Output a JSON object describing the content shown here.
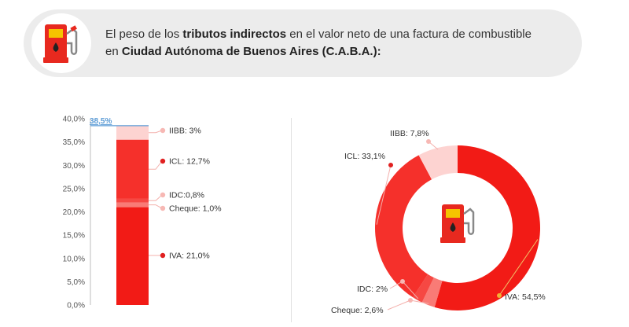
{
  "header": {
    "title_part1": "El peso de los ",
    "title_bold1": "tributos indirectos",
    "title_part2": " en el valor neto de una factura de combustible",
    "title_part3": "en ",
    "title_bold2": "Ciudad Autónoma de Buenos Aires (C.A.B.A.):",
    "icon": "fuel-pump-icon"
  },
  "colors": {
    "iva": "#f21b16",
    "cheque": "#f97b76",
    "idc": "#f64843",
    "icl": "#f5302b",
    "iibb": "#fdd3d1",
    "total_line": "#5b9bd5",
    "dot_light": "#f7b8b4",
    "dot_dark": "#e02020",
    "dot_gold": "#f2b134",
    "pump_red": "#e8291f",
    "pump_yellow": "#f5c400"
  },
  "chart_data": [
    {
      "type": "bar",
      "stacked": true,
      "categories": [
        ""
      ],
      "series": [
        {
          "name": "IVA",
          "values": [
            21.0
          ],
          "label": "IVA: 21,0%"
        },
        {
          "name": "Cheque",
          "values": [
            1.0
          ],
          "label": "Cheque: 1,0%"
        },
        {
          "name": "IDC",
          "values": [
            0.8
          ],
          "label": "IDC:0,8%"
        },
        {
          "name": "ICL",
          "values": [
            12.7
          ],
          "label": "ICL: 12,7%"
        },
        {
          "name": "IIBB",
          "values": [
            3.0
          ],
          "label": "IIBB: 3%"
        }
      ],
      "total": 38.5,
      "total_label": "38,5%",
      "ylim": [
        0,
        40
      ],
      "yticks": [
        "0,0%",
        "5,0%",
        "10,0%",
        "15,0%",
        "20,0%",
        "25,0%",
        "30,0%",
        "35,0%",
        "40,0%"
      ],
      "title": "",
      "xlabel": "",
      "ylabel": ""
    },
    {
      "type": "pie",
      "donut": true,
      "slices": [
        {
          "name": "IVA",
          "value": 54.5,
          "label": "IVA: 54,5%"
        },
        {
          "name": "Cheque",
          "value": 2.6,
          "label": "Cheque: 2,6%"
        },
        {
          "name": "IDC",
          "value": 2,
          "label": "IDC: 2%"
        },
        {
          "name": "ICL",
          "value": 33.1,
          "label": "ICL: 33,1%"
        },
        {
          "name": "IIBB",
          "value": 7.8,
          "label": "IIBB: 7,8%"
        }
      ],
      "title": ""
    }
  ]
}
